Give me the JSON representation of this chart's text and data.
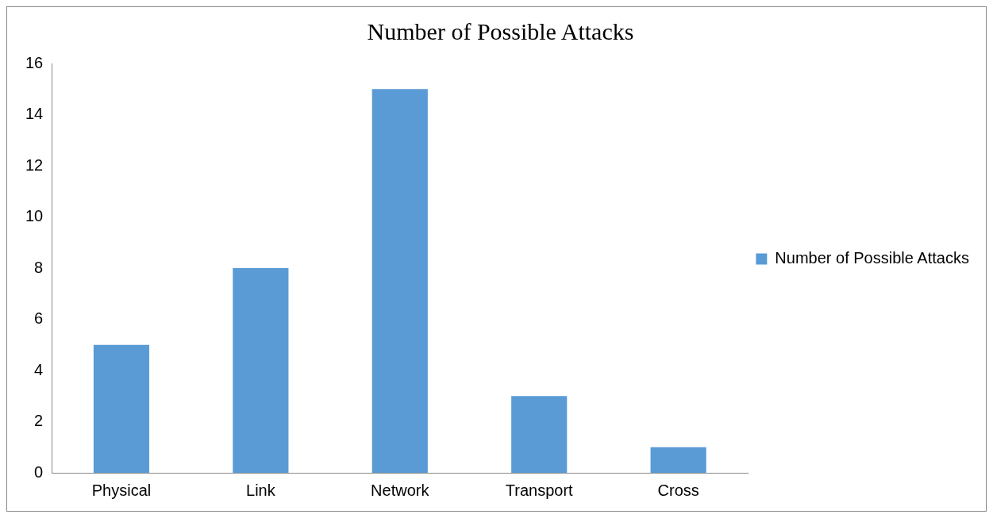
{
  "chart_data": {
    "type": "bar",
    "title": "Number of Possible Attacks",
    "categories": [
      "Physical",
      "Link",
      "Network",
      "Transport",
      "Cross"
    ],
    "series": [
      {
        "name": "Number of Possible Attacks",
        "color": "#5b9bd5",
        "values": [
          5,
          8,
          15,
          3,
          1
        ]
      }
    ],
    "ylim": [
      0,
      16
    ],
    "yticks": [
      0,
      2,
      4,
      6,
      8,
      10,
      12,
      14,
      16
    ],
    "grid": false,
    "legend": "right"
  }
}
